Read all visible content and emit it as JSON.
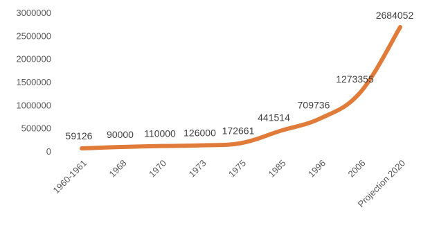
{
  "chart_data": {
    "type": "line",
    "title": "",
    "xlabel": "",
    "ylabel": "",
    "categories": [
      "1960-1961",
      "1968",
      "1970",
      "1973",
      "1975",
      "1985",
      "1996",
      "2006",
      "Projection 2020"
    ],
    "series": [
      {
        "values": [
          59126,
          90000,
          110000,
          126000,
          172661,
          441514,
          709736,
          1273355,
          2684052
        ]
      }
    ],
    "data_labels": [
      "59126",
      "90000",
      "110000",
      "126000",
      "172661",
      "441514",
      "709736",
      "1273355",
      "2684052"
    ],
    "y_ticks": [
      0,
      500000,
      1000000,
      1500000,
      2000000,
      2500000,
      3000000
    ],
    "y_tick_labels": [
      "0",
      "500000",
      "1000000",
      "1500000",
      "2000000",
      "2500000",
      "3000000"
    ],
    "ylim": [
      0,
      3000000
    ],
    "grid": false,
    "legend": "none",
    "colors": {
      "line": "#E07B39",
      "text": "#404040",
      "axis_text": "#595959"
    }
  }
}
